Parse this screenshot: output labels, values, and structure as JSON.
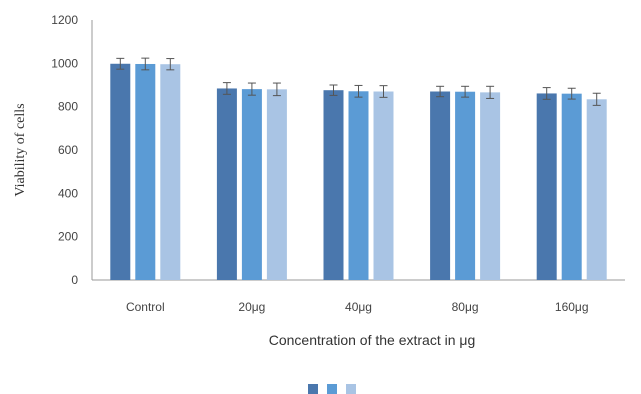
{
  "chart_data": {
    "type": "bar",
    "categories": [
      "Control",
      "20μg",
      "40μg",
      "80μg",
      "160μg"
    ],
    "series": [
      {
        "values": [
          998,
          884,
          876,
          870,
          861
        ],
        "errors": [
          25,
          27,
          24,
          24,
          27
        ],
        "color": "#4a77ad"
      },
      {
        "values": [
          997,
          881,
          871,
          869,
          860
        ],
        "errors": [
          27,
          28,
          27,
          25,
          25
        ],
        "color": "#5b9bd5"
      },
      {
        "values": [
          996,
          880,
          870,
          866,
          834
        ],
        "errors": [
          26,
          29,
          27,
          28,
          28
        ],
        "color": "#a9c4e4"
      }
    ],
    "xlabel": "Concentration of the extract in μg",
    "ylabel": "Viability of cells",
    "ylim": [
      0,
      1200
    ],
    "yticks": [
      "0",
      "200",
      "400",
      "600",
      "800",
      "1000",
      "1200"
    ],
    "grid": false,
    "legend_position": "bottom"
  }
}
